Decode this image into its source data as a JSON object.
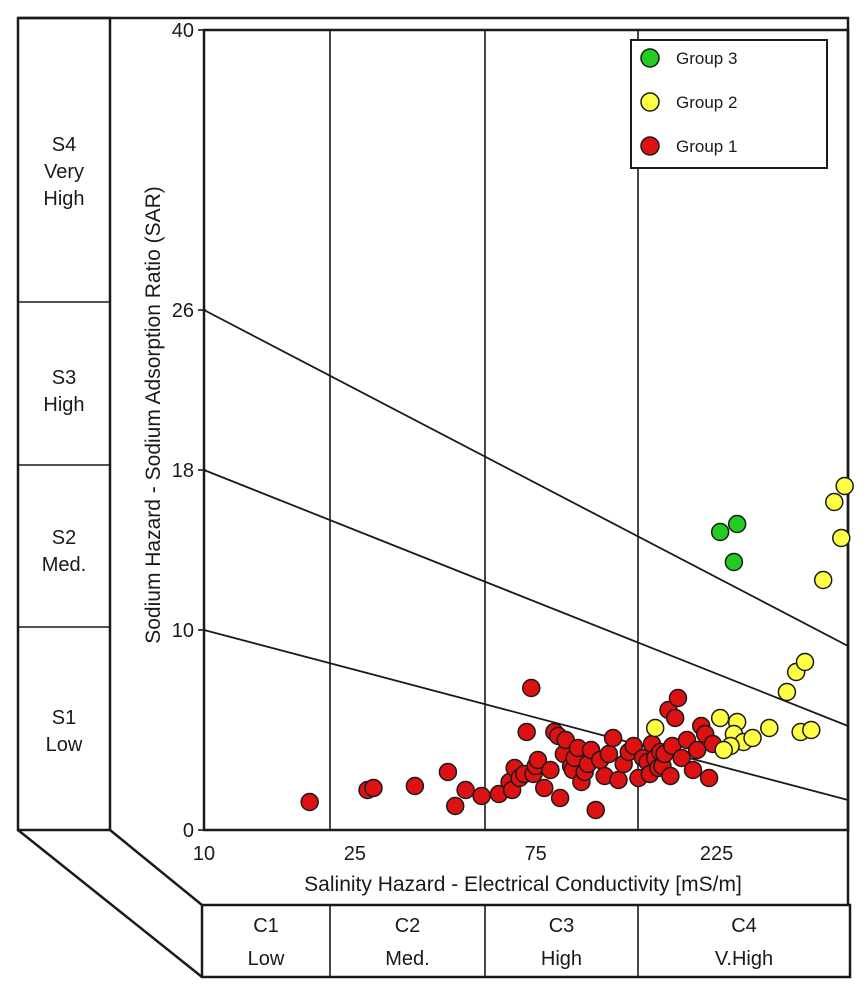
{
  "chart_data": {
    "type": "scatter",
    "chart_kind": "Wilcox / US Salinity Laboratory diagram (SAR vs EC)",
    "xlabel": "Salinity Hazard - Electrical Conductivity [mS/m]",
    "ylabel": "Sodium Hazard - Sodium Adsorption Ratio (SAR)",
    "x_scale": "log",
    "xlim": [
      10,
      500
    ],
    "ylim": [
      0,
      40
    ],
    "x_ticks": [
      "10",
      "25",
      "75",
      "225"
    ],
    "y_ticks": [
      "0",
      "10",
      "18",
      "26",
      "40"
    ],
    "x_tick_values": [
      10,
      25,
      75,
      225
    ],
    "y_tick_values": [
      0,
      10,
      18,
      26,
      40
    ],
    "grid": false,
    "legend_position": "top-right",
    "hazard_curves": [
      {
        "x": [
          10,
          500
        ],
        "y": [
          10,
          1.5
        ]
      },
      {
        "x": [
          10,
          500
        ],
        "y": [
          18,
          5.2
        ]
      },
      {
        "x": [
          10,
          500
        ],
        "y": [
          26,
          9.2
        ]
      }
    ],
    "salinity_classes": [
      {
        "code": "C1",
        "label": "Low"
      },
      {
        "code": "C2",
        "label": "Med."
      },
      {
        "code": "C3",
        "label": "High"
      },
      {
        "code": "C4",
        "label": "V.High"
      }
    ],
    "sodium_classes": [
      {
        "code": "S1",
        "label": "Low"
      },
      {
        "code": "S2",
        "label": "Med."
      },
      {
        "code": "S3",
        "label": "High"
      },
      {
        "code": "S4",
        "label": "Very\nHigh"
      }
    ],
    "series": [
      {
        "name": "Group 3",
        "color": "#22cc22",
        "x": [
          230,
          255,
          250
        ],
        "y": [
          14.9,
          15.3,
          13.4
        ]
      },
      {
        "name": "Group 2",
        "color": "#ffff44",
        "x": [
          155,
          230,
          255,
          250,
          265,
          280,
          310,
          345,
          365,
          385,
          375,
          400,
          430,
          460,
          490,
          480,
          245,
          235
        ],
        "y": [
          5.1,
          5.6,
          5.4,
          4.8,
          4.4,
          4.6,
          5.1,
          6.9,
          7.9,
          8.4,
          4.9,
          5.0,
          12.5,
          16.4,
          17.2,
          14.6,
          4.2,
          4.0
        ]
      },
      {
        "name": "Group 1",
        "color": "#dd1111",
        "x": [
          19,
          27,
          28,
          36,
          44,
          46,
          49,
          54,
          60,
          64,
          65,
          66,
          68,
          70,
          71,
          73,
          74,
          75,
          76,
          79,
          82,
          84,
          86,
          87,
          89,
          90,
          93,
          94,
          95,
          97,
          99,
          101,
          103,
          105,
          108,
          111,
          114,
          117,
          120,
          124,
          128,
          132,
          136,
          140,
          144,
          148,
          150,
          152,
          155,
          158,
          160,
          162,
          164,
          168,
          170,
          172,
          175,
          178,
          182,
          188,
          195,
          200,
          205,
          210,
          215,
          220
        ],
        "y": [
          1.4,
          2.0,
          2.1,
          2.2,
          2.9,
          1.2,
          2.0,
          1.7,
          1.8,
          2.4,
          2.0,
          3.1,
          2.6,
          2.8,
          4.9,
          7.1,
          2.8,
          3.2,
          3.5,
          2.1,
          3.0,
          4.9,
          4.7,
          1.6,
          3.8,
          4.5,
          3.2,
          3.0,
          3.6,
          4.1,
          2.4,
          2.9,
          3.3,
          4.0,
          1.0,
          3.5,
          2.7,
          3.8,
          4.6,
          2.5,
          3.3,
          3.9,
          4.2,
          2.6,
          3.6,
          3.4,
          2.8,
          4.3,
          3.6,
          3.1,
          3.9,
          3.2,
          3.8,
          6.0,
          2.7,
          4.2,
          5.6,
          6.6,
          3.6,
          4.5,
          3.0,
          4.0,
          5.2,
          4.8,
          2.6,
          4.3
        ]
      }
    ]
  }
}
